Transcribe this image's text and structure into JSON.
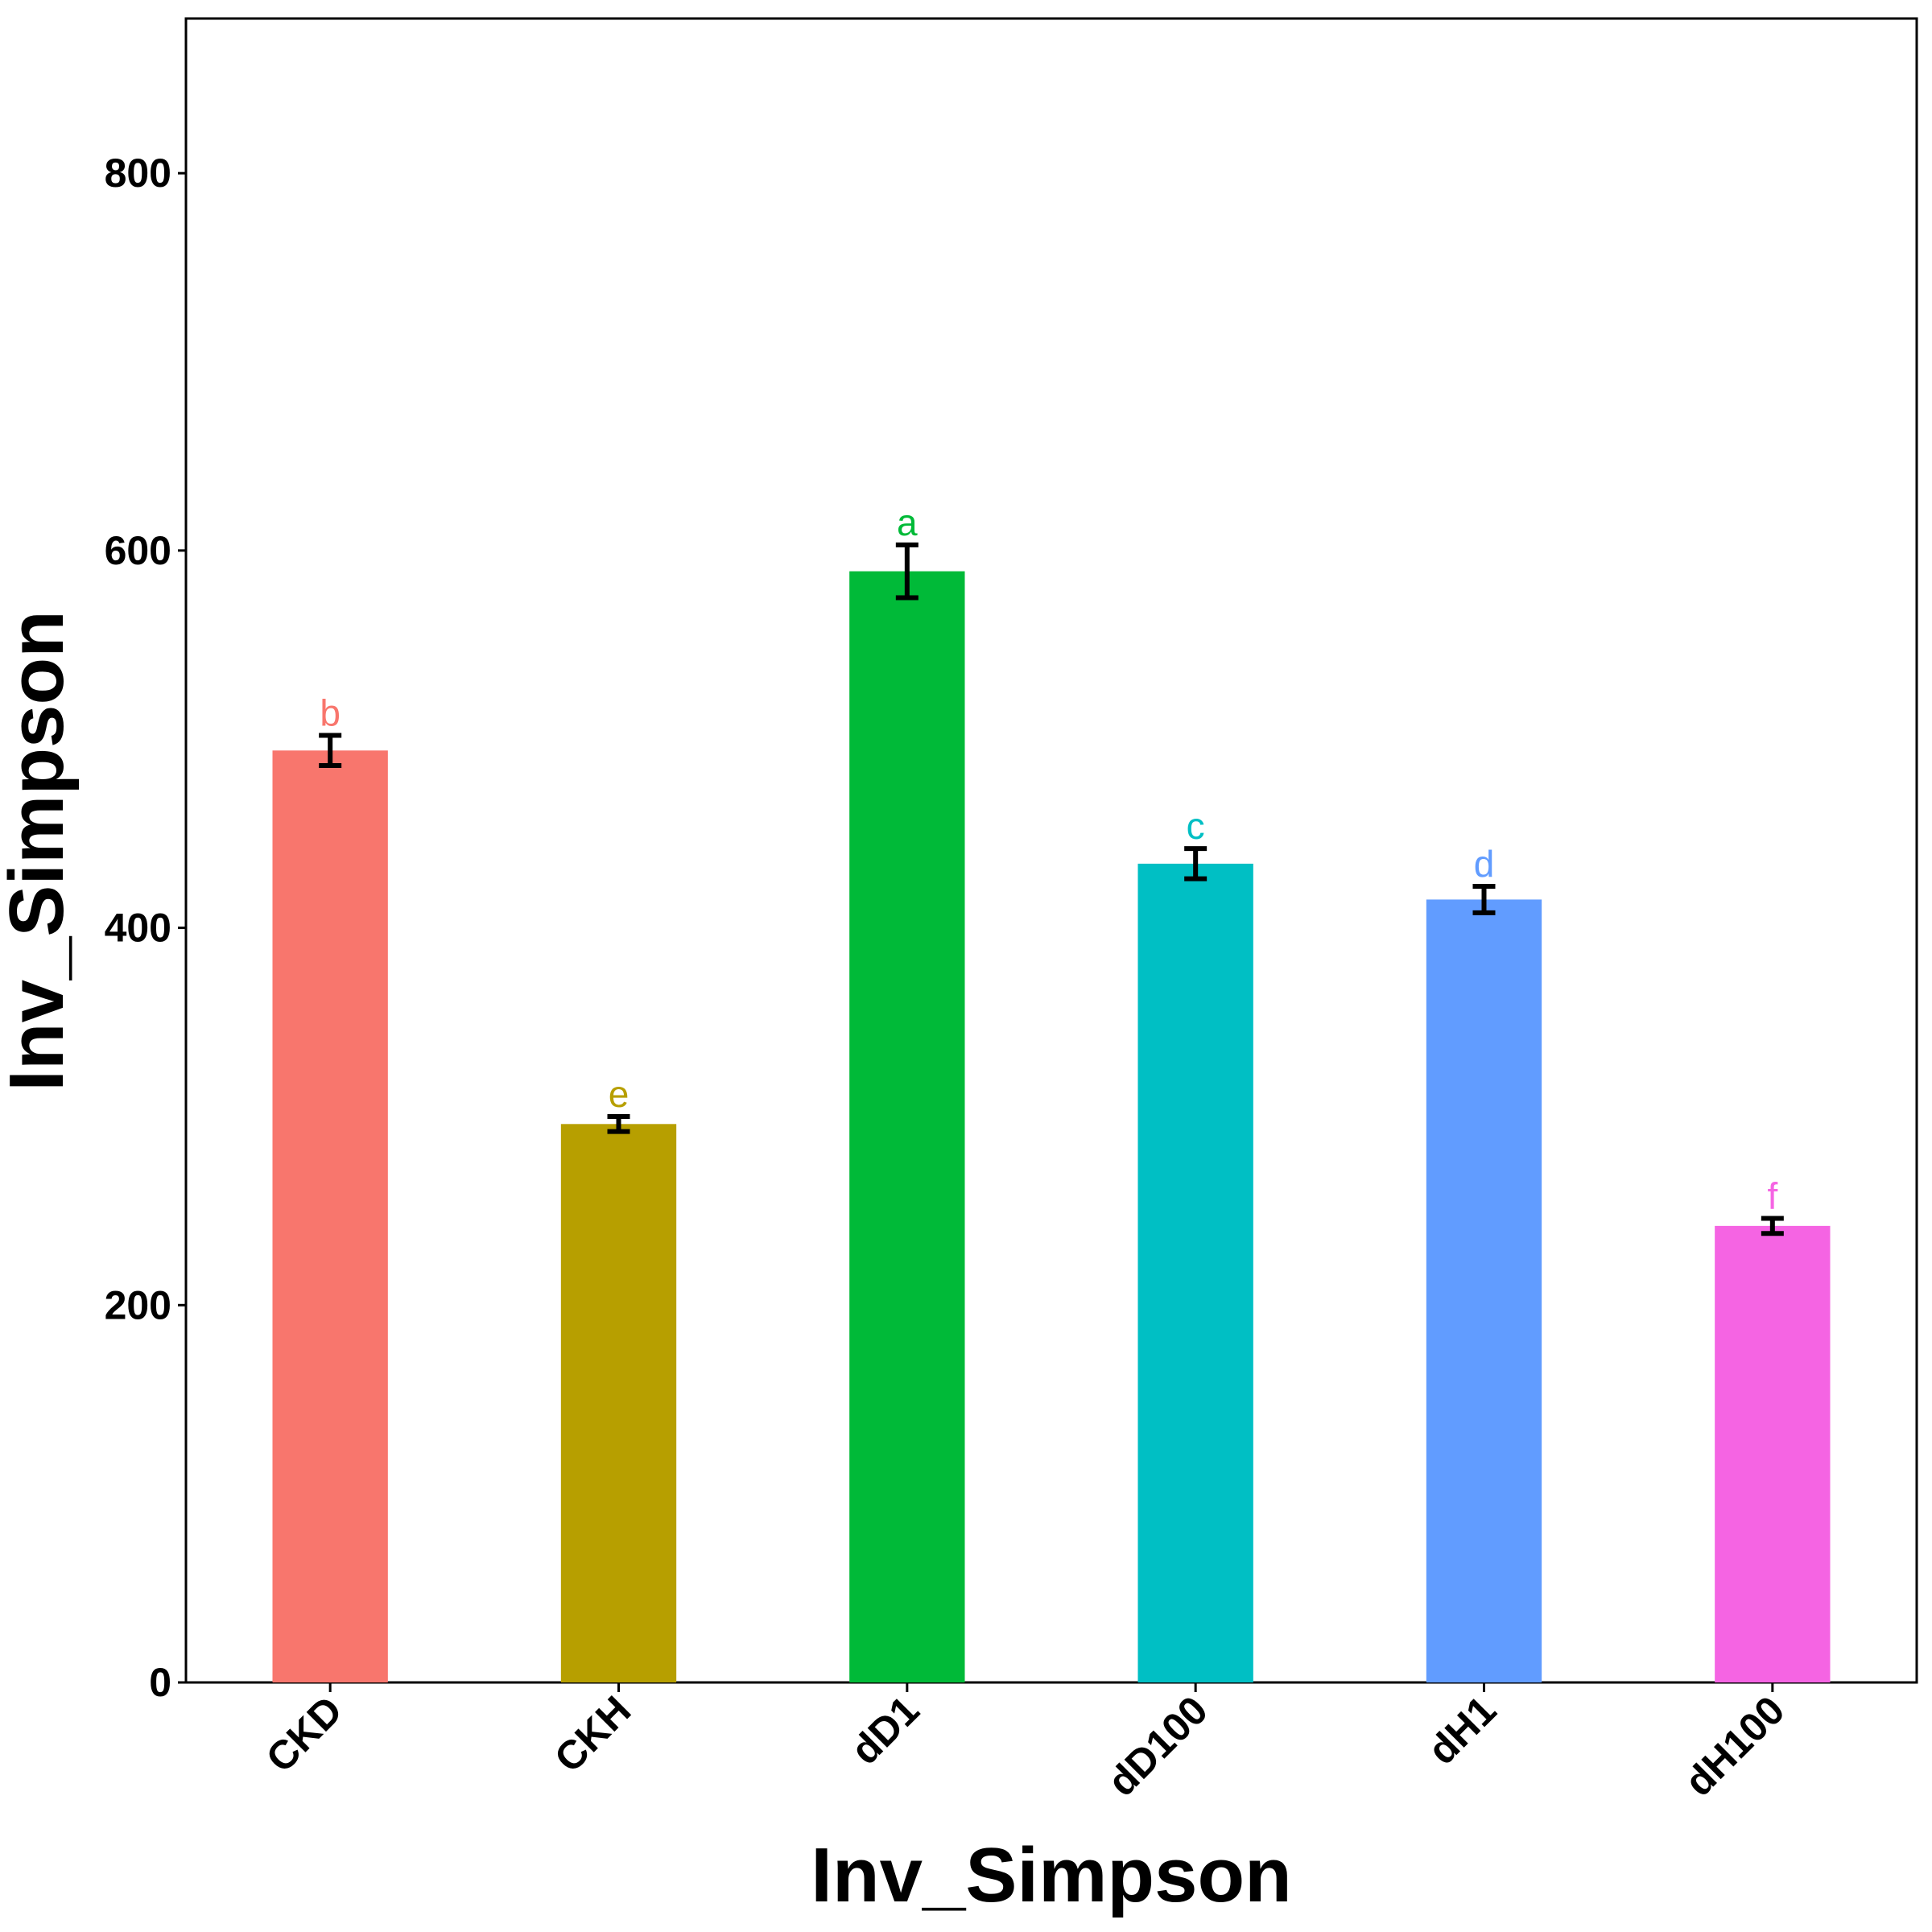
{
  "chart_data": {
    "type": "bar",
    "xlabel": "Inv_Simpson",
    "ylabel": "Inv_Simpson",
    "ylim": [
      0,
      882
    ],
    "yticks": [
      0,
      200,
      400,
      600,
      800
    ],
    "categories": [
      "CKD",
      "CKH",
      "dD1",
      "dD100",
      "dH1",
      "dH100"
    ],
    "values": [
      494,
      296,
      589,
      434,
      415,
      242
    ],
    "errors": [
      8,
      4,
      14,
      8,
      7,
      4
    ],
    "significance": [
      "b",
      "e",
      "a",
      "c",
      "d",
      "f"
    ],
    "colors": [
      "#F8766D",
      "#B79F00",
      "#00BA38",
      "#00BFC4",
      "#619CFF",
      "#F564E3"
    ],
    "grid": false,
    "legend": "none"
  }
}
